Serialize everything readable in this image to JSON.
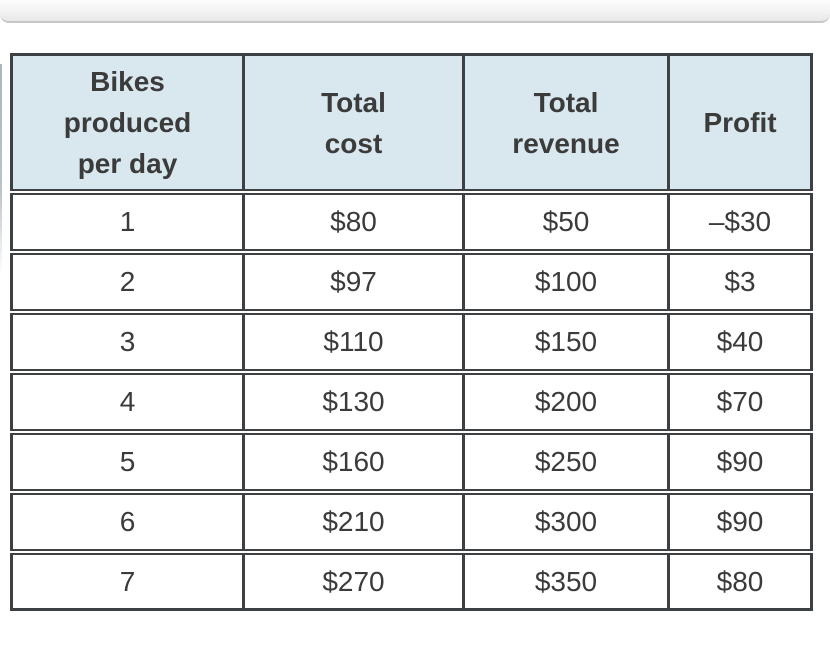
{
  "table": {
    "headers": [
      "Bikes\nproduced\nper day",
      "Total\ncost",
      "Total\nrevenue",
      "Profit"
    ],
    "rows": [
      [
        "1",
        "$80",
        "$50",
        "–$30"
      ],
      [
        "2",
        "$97",
        "$100",
        "$3"
      ],
      [
        "3",
        "$110",
        "$150",
        "$40"
      ],
      [
        "4",
        "$130",
        "$200",
        "$70"
      ],
      [
        "5",
        "$160",
        "$250",
        "$90"
      ],
      [
        "6",
        "$210",
        "$300",
        "$90"
      ],
      [
        "7",
        "$270",
        "$350",
        "$80"
      ]
    ]
  },
  "chart_data": {
    "type": "table",
    "title": "",
    "columns": [
      "Bikes produced per day",
      "Total cost",
      "Total revenue",
      "Profit"
    ],
    "rows": [
      [
        1,
        80,
        50,
        -30
      ],
      [
        2,
        97,
        100,
        3
      ],
      [
        3,
        110,
        150,
        40
      ],
      [
        4,
        130,
        200,
        70
      ],
      [
        5,
        160,
        250,
        90
      ],
      [
        6,
        210,
        300,
        90
      ],
      [
        7,
        270,
        350,
        80
      ]
    ],
    "units": "USD"
  },
  "colors": {
    "header_bg": "#d9e8ee",
    "border": "#3d4144",
    "text": "#3b3b3b",
    "topbar_border": "#c7c7c7"
  }
}
